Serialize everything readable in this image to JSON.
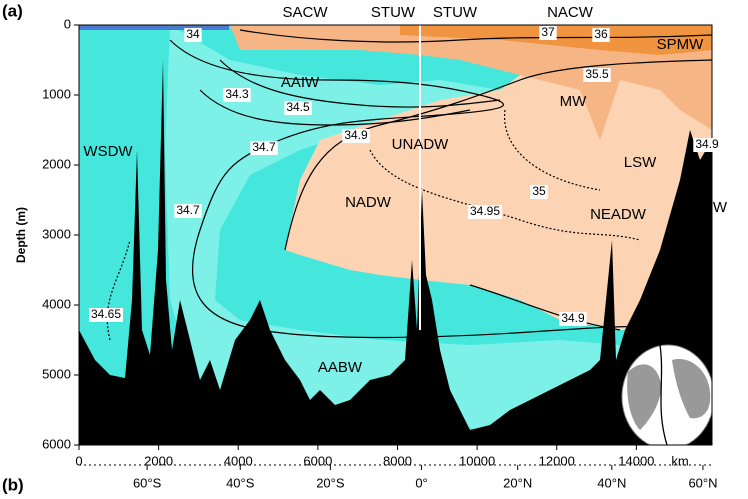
{
  "chart_data": {
    "type": "section",
    "panel_labels": [
      "(a)",
      "(b)"
    ],
    "y_label": "Depth (m)",
    "x_label": "km",
    "xlim": [
      0,
      15900
    ],
    "xticks": [
      0,
      2000,
      4000,
      6000,
      8000,
      10000,
      12000,
      14000
    ],
    "ylim": [
      0,
      6000
    ],
    "yticks": [
      0,
      1000,
      2000,
      3000,
      4000,
      5000,
      6000
    ],
    "x2ticks": [
      {
        "value": 1711,
        "label": "60°S"
      },
      {
        "value": 4050,
        "label": "40°S"
      },
      {
        "value": 6314,
        "label": "20°S"
      },
      {
        "value": 8604,
        "label": "0°"
      },
      {
        "value": 11019,
        "label": "20°N"
      },
      {
        "value": 13384,
        "label": "40°N"
      },
      {
        "value": 15673,
        "label": "60°N"
      }
    ],
    "water_masses": [
      "SACW",
      "STUW",
      "STUW",
      "NACW",
      "SPMW",
      "AAIW",
      "MW",
      "UNADW",
      "LSW",
      "WSDW",
      "NADW",
      "NEADW",
      "W",
      "AABW"
    ],
    "contour_labels": [
      34,
      37,
      36,
      35.5,
      34.3,
      34.5,
      34.9,
      34.9,
      34.7,
      35,
      34.95,
      34.7,
      34.65,
      34.9
    ]
  }
}
